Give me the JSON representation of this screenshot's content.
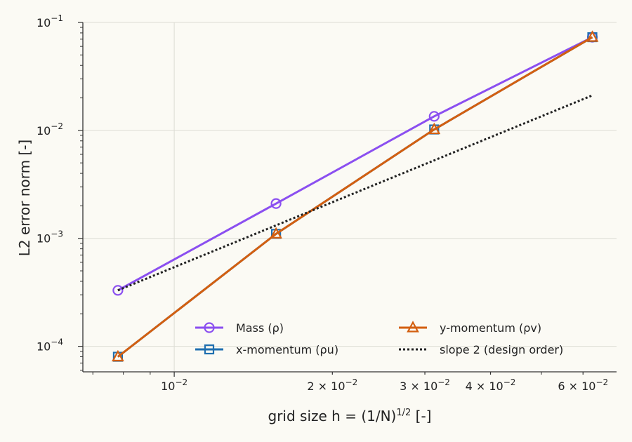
{
  "chart_data": {
    "type": "line",
    "xscale": "log",
    "yscale": "log",
    "xlabel": "grid size  h = (1/N)",
    "xlabel_sup": "1/2",
    "xlabel_suffix": " [-]",
    "ylabel": "L2 error norm [-]",
    "xlim": [
      0.0067,
      0.0695
    ],
    "ylim": [
      5.8e-05,
      0.1
    ],
    "grid": true,
    "legend_position": "lower right",
    "x_ticks": [
      {
        "value": 0.01,
        "base": "10",
        "exp": "−2"
      },
      {
        "value": 0.02,
        "base": "2 × 10",
        "exp": "−2"
      },
      {
        "value": 0.03,
        "base": "3 × 10",
        "exp": "−2"
      },
      {
        "value": 0.04,
        "base": "4 × 10",
        "exp": "−2"
      },
      {
        "value": 0.06,
        "base": "6 × 10",
        "exp": "−2"
      }
    ],
    "y_ticks": [
      {
        "value": 0.0001,
        "base": "10",
        "exp": "−4"
      },
      {
        "value": 0.001,
        "base": "10",
        "exp": "−3"
      },
      {
        "value": 0.01,
        "base": "10",
        "exp": "−2"
      },
      {
        "value": 0.1,
        "base": "10",
        "exp": "−1"
      }
    ],
    "series": [
      {
        "name": "Mass (ρ)",
        "color": "#8b4ff0",
        "marker": "circle",
        "dash": "",
        "x": [
          0.0078125,
          0.015625,
          0.03125,
          0.0625
        ],
        "y": [
          0.00033,
          0.0021,
          0.0135,
          0.073
        ]
      },
      {
        "name": "x-momentum (ρu)",
        "color": "#1f6fb0",
        "marker": "square",
        "dash": "",
        "x": [
          0.0078125,
          0.015625,
          0.03125,
          0.0625
        ],
        "y": [
          8e-05,
          0.0011,
          0.0102,
          0.073
        ]
      },
      {
        "name": "y-momentum (ρv)",
        "color": "#d35f10",
        "marker": "triangle",
        "dash": "",
        "x": [
          0.0078125,
          0.015625,
          0.03125,
          0.0625
        ],
        "y": [
          8e-05,
          0.0011,
          0.0102,
          0.073
        ]
      },
      {
        "name": "slope 2 (design order)",
        "color": "#222222",
        "marker": "none",
        "dash": "3,3",
        "x": [
          0.0078125,
          0.0625
        ],
        "y": [
          0.00033,
          0.0211
        ]
      }
    ]
  }
}
